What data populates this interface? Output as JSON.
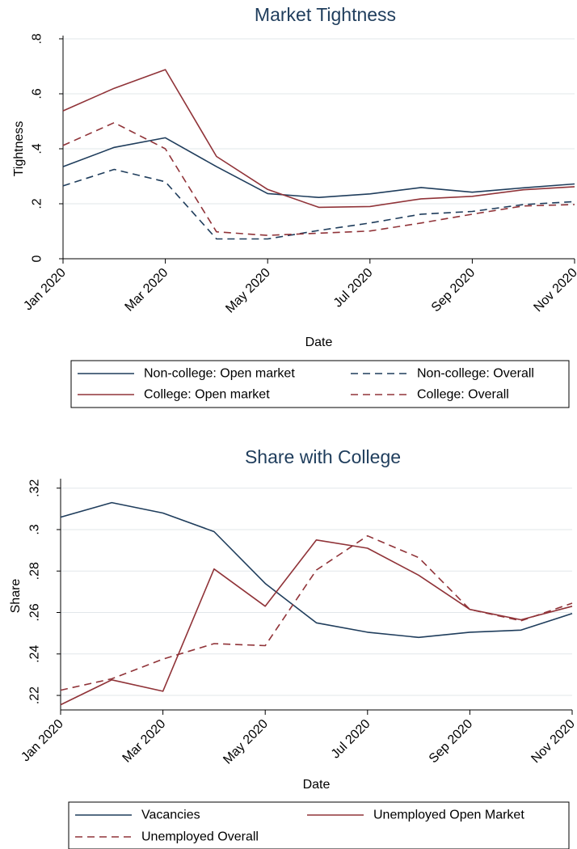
{
  "colors": {
    "navy": "#1f3d5c",
    "maroon": "#903338",
    "grid": "#e2e7ea",
    "title": "#1f3d5c"
  },
  "chart_data": [
    {
      "type": "line",
      "title": "Market Tightness",
      "xlabel": "Date",
      "ylabel": "Tightness",
      "x": [
        "2020-01",
        "2020-02",
        "2020-03",
        "2020-04",
        "2020-05",
        "2020-06",
        "2020-07",
        "2020-08",
        "2020-09",
        "2020-10",
        "2020-11"
      ],
      "xticks": [
        "Jan 2020",
        "Mar 2020",
        "May 2020",
        "Jul 2020",
        "Sep 2020",
        "Nov 2020"
      ],
      "yticks": [
        "0",
        ".2",
        ".4",
        ".6",
        ".8"
      ],
      "ylim": [
        0,
        0.8
      ],
      "legend_position": "bottom",
      "legend_columns": 2,
      "series": [
        {
          "name": "Non-college: Open market",
          "color": "#1f3d5c",
          "dash": false,
          "values": [
            0.335,
            0.405,
            0.44,
            0.335,
            0.237,
            0.223,
            0.236,
            0.259,
            0.242,
            0.258,
            0.272
          ]
        },
        {
          "name": "Non-college: Overall",
          "color": "#1f3d5c",
          "dash": true,
          "values": [
            0.265,
            0.325,
            0.28,
            0.072,
            0.072,
            0.103,
            0.13,
            0.162,
            0.172,
            0.197,
            0.208
          ]
        },
        {
          "name": "College: Open market",
          "color": "#903338",
          "dash": false,
          "values": [
            0.538,
            0.62,
            0.688,
            0.372,
            0.252,
            0.187,
            0.19,
            0.218,
            0.227,
            0.251,
            0.262
          ]
        },
        {
          "name": "College: Overall",
          "color": "#903338",
          "dash": true,
          "values": [
            0.412,
            0.495,
            0.4,
            0.098,
            0.085,
            0.093,
            0.101,
            0.13,
            0.162,
            0.192,
            0.197
          ]
        }
      ]
    },
    {
      "type": "line",
      "title": "Share with College",
      "xlabel": "Date",
      "ylabel": "Share",
      "x": [
        "2020-01",
        "2020-02",
        "2020-03",
        "2020-04",
        "2020-05",
        "2020-06",
        "2020-07",
        "2020-08",
        "2020-09",
        "2020-10",
        "2020-11"
      ],
      "xticks": [
        "Jan 2020",
        "Mar 2020",
        "May 2020",
        "Jul 2020",
        "Sep 2020",
        "Nov 2020"
      ],
      "yticks": [
        ".22",
        ".24",
        ".26",
        ".28",
        ".3",
        ".32"
      ],
      "ylim": [
        0.213,
        0.323
      ],
      "legend_position": "bottom",
      "legend_columns": 2,
      "series": [
        {
          "name": "Vacancies",
          "color": "#1f3d5c",
          "dash": false,
          "values": [
            0.306,
            0.313,
            0.308,
            0.299,
            0.274,
            0.255,
            0.2505,
            0.248,
            0.2505,
            0.2515,
            0.2595
          ]
        },
        {
          "name": "Unemployed Open Market",
          "color": "#903338",
          "dash": false,
          "values": [
            0.2155,
            0.2275,
            0.222,
            0.281,
            0.263,
            0.295,
            0.291,
            0.278,
            0.2615,
            0.2565,
            0.263
          ]
        },
        {
          "name": "Unemployed Overall",
          "color": "#903338",
          "dash": true,
          "values": [
            0.2225,
            0.228,
            0.2375,
            0.245,
            0.244,
            0.2805,
            0.297,
            0.2865,
            0.2615,
            0.256,
            0.2645
          ]
        }
      ]
    }
  ]
}
